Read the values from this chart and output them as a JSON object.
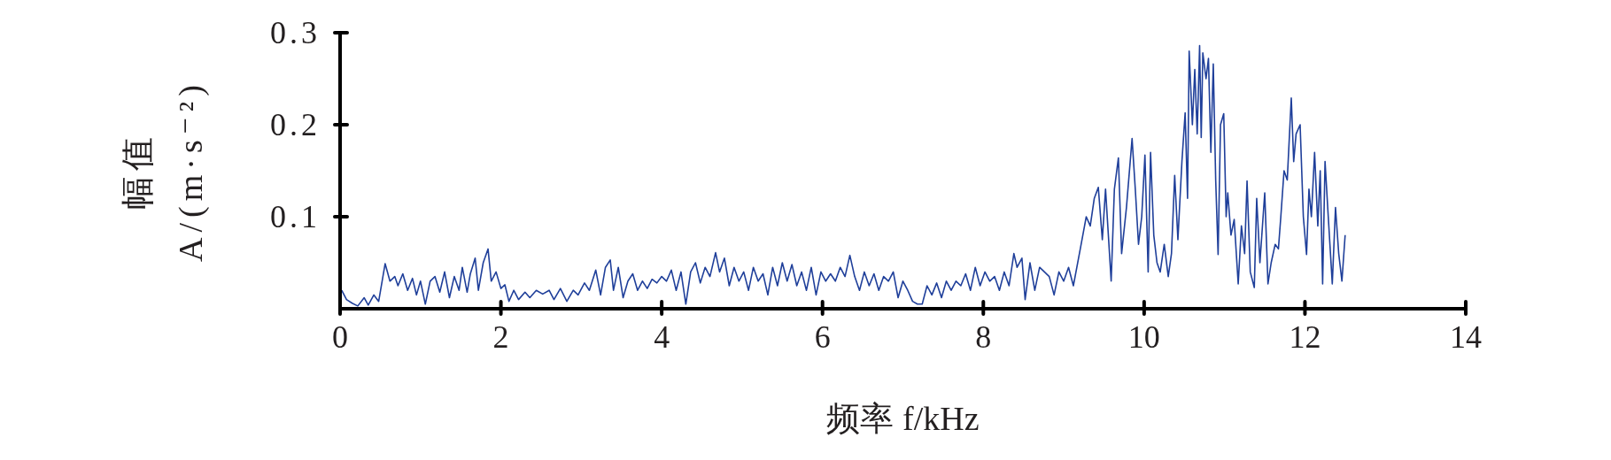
{
  "chart_data": {
    "type": "line",
    "xlabel": "频率 f/kHz",
    "ylabel": "幅值\nA/(m·s⁻²)",
    "xlim": [
      0,
      14
    ],
    "xticks": [
      0,
      2,
      4,
      6,
      8,
      10,
      12,
      14
    ],
    "ylim": [
      0,
      0.3
    ],
    "yticks": [
      0.1,
      0.2,
      0.3
    ],
    "grid": false,
    "legend": false,
    "marker": "none",
    "line_style": "solid",
    "series": [
      {
        "color": "#1f3f9a",
        "x": [
          0.02,
          0.08,
          0.15,
          0.22,
          0.3,
          0.35,
          0.42,
          0.48,
          0.56,
          0.62,
          0.68,
          0.72,
          0.78,
          0.84,
          0.9,
          0.95,
          1.0,
          1.06,
          1.12,
          1.18,
          1.24,
          1.3,
          1.36,
          1.42,
          1.48,
          1.52,
          1.58,
          1.62,
          1.68,
          1.72,
          1.78,
          1.84,
          1.88,
          1.94,
          2.0,
          2.05,
          2.1,
          2.16,
          2.22,
          2.3,
          2.36,
          2.44,
          2.52,
          2.6,
          2.66,
          2.74,
          2.82,
          2.9,
          2.96,
          3.04,
          3.1,
          3.18,
          3.24,
          3.3,
          3.36,
          3.4,
          3.46,
          3.52,
          3.58,
          3.64,
          3.7,
          3.76,
          3.82,
          3.88,
          3.94,
          4.0,
          4.06,
          4.12,
          4.18,
          4.24,
          4.3,
          4.36,
          4.42,
          4.48,
          4.54,
          4.6,
          4.67,
          4.72,
          4.78,
          4.84,
          4.9,
          4.96,
          5.02,
          5.08,
          5.14,
          5.2,
          5.26,
          5.32,
          5.38,
          5.44,
          5.5,
          5.56,
          5.62,
          5.68,
          5.74,
          5.8,
          5.86,
          5.92,
          5.98,
          6.04,
          6.1,
          6.16,
          6.22,
          6.28,
          6.34,
          6.4,
          6.46,
          6.52,
          6.58,
          6.64,
          6.7,
          6.76,
          6.82,
          6.88,
          6.94,
          7.0,
          7.06,
          7.12,
          7.18,
          7.24,
          7.3,
          7.36,
          7.42,
          7.48,
          7.54,
          7.6,
          7.66,
          7.72,
          7.78,
          7.84,
          7.9,
          7.96,
          8.02,
          8.08,
          8.14,
          8.2,
          8.26,
          8.32,
          8.38,
          8.42,
          8.48,
          8.52,
          8.58,
          8.64,
          8.7,
          8.76,
          8.82,
          8.88,
          8.94,
          9.0,
          9.06,
          9.12,
          9.21,
          9.28,
          9.33,
          9.38,
          9.43,
          9.48,
          9.52,
          9.59,
          9.63,
          9.68,
          9.72,
          9.78,
          9.85,
          9.89,
          9.93,
          9.97,
          10.01,
          10.05,
          10.08,
          10.12,
          10.16,
          10.2,
          10.25,
          10.3,
          10.34,
          10.38,
          10.42,
          10.47,
          10.51,
          10.54,
          10.56,
          10.6,
          10.63,
          10.66,
          10.69,
          10.71,
          10.73,
          10.77,
          10.8,
          10.83,
          10.86,
          10.89,
          10.92,
          10.95,
          10.99,
          11.02,
          11.04,
          11.08,
          11.12,
          11.17,
          11.21,
          11.25,
          11.28,
          11.32,
          11.37,
          11.4,
          11.44,
          11.5,
          11.54,
          11.58,
          11.63,
          11.67,
          11.7,
          11.74,
          11.78,
          11.83,
          11.86,
          11.89,
          11.94,
          11.98,
          12.02,
          12.05,
          12.08,
          12.12,
          12.16,
          12.19,
          12.22,
          12.25,
          12.29,
          12.34,
          12.38,
          12.42,
          12.46,
          12.5
        ],
        "values": [
          0.02,
          0.01,
          0.006,
          0.003,
          0.012,
          0.004,
          0.015,
          0.008,
          0.049,
          0.03,
          0.035,
          0.025,
          0.038,
          0.02,
          0.033,
          0.015,
          0.03,
          0.005,
          0.03,
          0.035,
          0.018,
          0.04,
          0.012,
          0.035,
          0.02,
          0.045,
          0.018,
          0.038,
          0.055,
          0.02,
          0.05,
          0.065,
          0.03,
          0.04,
          0.022,
          0.026,
          0.008,
          0.02,
          0.01,
          0.018,
          0.012,
          0.02,
          0.016,
          0.02,
          0.01,
          0.022,
          0.008,
          0.02,
          0.015,
          0.028,
          0.02,
          0.042,
          0.015,
          0.045,
          0.053,
          0.02,
          0.045,
          0.012,
          0.03,
          0.038,
          0.02,
          0.03,
          0.022,
          0.032,
          0.028,
          0.035,
          0.03,
          0.042,
          0.02,
          0.04,
          0.005,
          0.04,
          0.05,
          0.028,
          0.045,
          0.035,
          0.061,
          0.04,
          0.055,
          0.025,
          0.045,
          0.03,
          0.04,
          0.02,
          0.045,
          0.03,
          0.038,
          0.015,
          0.045,
          0.025,
          0.05,
          0.03,
          0.048,
          0.025,
          0.04,
          0.02,
          0.045,
          0.015,
          0.04,
          0.03,
          0.038,
          0.03,
          0.045,
          0.035,
          0.058,
          0.035,
          0.02,
          0.04,
          0.025,
          0.038,
          0.02,
          0.035,
          0.03,
          0.04,
          0.012,
          0.03,
          0.02,
          0.008,
          0.005,
          0.005,
          0.025,
          0.015,
          0.028,
          0.012,
          0.03,
          0.02,
          0.03,
          0.025,
          0.038,
          0.02,
          0.045,
          0.025,
          0.04,
          0.03,
          0.035,
          0.02,
          0.04,
          0.025,
          0.06,
          0.045,
          0.055,
          0.01,
          0.05,
          0.02,
          0.045,
          0.04,
          0.035,
          0.015,
          0.04,
          0.03,
          0.045,
          0.025,
          0.067,
          0.1,
          0.09,
          0.12,
          0.132,
          0.075,
          0.13,
          0.03,
          0.13,
          0.164,
          0.06,
          0.11,
          0.185,
          0.13,
          0.07,
          0.1,
          0.167,
          0.04,
          0.17,
          0.08,
          0.05,
          0.04,
          0.07,
          0.035,
          0.06,
          0.145,
          0.075,
          0.16,
          0.213,
          0.12,
          0.28,
          0.2,
          0.26,
          0.19,
          0.286,
          0.186,
          0.278,
          0.25,
          0.272,
          0.17,
          0.266,
          0.14,
          0.059,
          0.2,
          0.212,
          0.1,
          0.126,
          0.08,
          0.097,
          0.027,
          0.09,
          0.06,
          0.139,
          0.04,
          0.023,
          0.12,
          0.05,
          0.126,
          0.027,
          0.05,
          0.07,
          0.065,
          0.1,
          0.15,
          0.14,
          0.229,
          0.16,
          0.19,
          0.2,
          0.1,
          0.059,
          0.13,
          0.1,
          0.17,
          0.09,
          0.15,
          0.027,
          0.16,
          0.1,
          0.027,
          0.11,
          0.06,
          0.03,
          0.08
        ]
      }
    ]
  }
}
